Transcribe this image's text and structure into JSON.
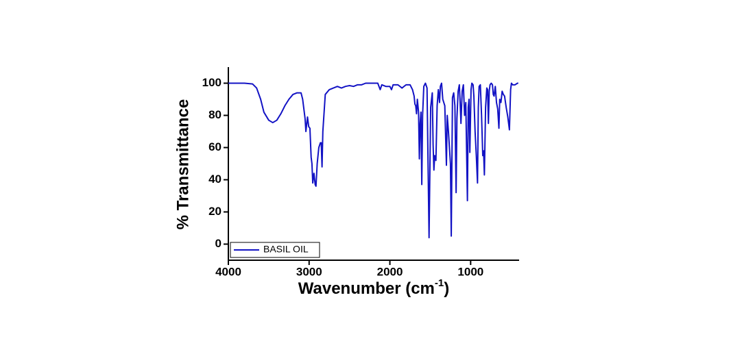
{
  "chart_data": {
    "type": "line",
    "xlabel": [
      "Wavenumber (cm",
      "-1",
      ")"
    ],
    "ylabel": "% Transmittance",
    "xlim": [
      4000,
      400
    ],
    "ylim": [
      -10,
      110
    ],
    "xticks": [
      4000,
      3000,
      2000,
      1000
    ],
    "yticks": [
      0,
      20,
      40,
      60,
      80,
      100
    ],
    "legend": "bottom-left",
    "x": [
      4000,
      3800,
      3700,
      3650,
      3600,
      3560,
      3500,
      3450,
      3400,
      3350,
      3300,
      3250,
      3200,
      3150,
      3100,
      3080,
      3050,
      3040,
      3020,
      3005,
      2990,
      2975,
      2965,
      2955,
      2940,
      2925,
      2915,
      2900,
      2880,
      2860,
      2850,
      2840,
      2830,
      2800,
      2750,
      2700,
      2650,
      2600,
      2550,
      2500,
      2450,
      2400,
      2350,
      2300,
      2200,
      2150,
      2120,
      2100,
      2050,
      2000,
      1980,
      1960,
      1900,
      1850,
      1800,
      1750,
      1720,
      1700,
      1690,
      1680,
      1670,
      1660,
      1645,
      1635,
      1625,
      1615,
      1605,
      1595,
      1580,
      1560,
      1540,
      1515,
      1495,
      1475,
      1465,
      1455,
      1445,
      1430,
      1415,
      1400,
      1385,
      1375,
      1360,
      1345,
      1320,
      1300,
      1290,
      1275,
      1250,
      1240,
      1225,
      1210,
      1195,
      1180,
      1170,
      1155,
      1140,
      1130,
      1120,
      1105,
      1090,
      1075,
      1060,
      1040,
      1030,
      1020,
      1010,
      995,
      985,
      970,
      960,
      945,
      930,
      915,
      905,
      895,
      880,
      865,
      850,
      840,
      830,
      815,
      800,
      790,
      780,
      770,
      760,
      745,
      730,
      720,
      710,
      695,
      680,
      665,
      650,
      640,
      625,
      610,
      595,
      580,
      560,
      540,
      520,
      505,
      495,
      480,
      450,
      420,
      410
    ],
    "series": [
      {
        "name": "BASIL OIL",
        "color": "#1212c4",
        "values": [
          100,
          100,
          99.5,
          97,
          90,
          82,
          77,
          75.5,
          77,
          81,
          86,
          90,
          93,
          94,
          94,
          90,
          78,
          70,
          79,
          73,
          72,
          54,
          50,
          38,
          44,
          37,
          36,
          50,
          60,
          63,
          63,
          48,
          70,
          93,
          96,
          97,
          98,
          97,
          98,
          98.5,
          98,
          99,
          99,
          100,
          100,
          100,
          96,
          99,
          98,
          98,
          96,
          99,
          99,
          97,
          99,
          99,
          96,
          92,
          87,
          86,
          81,
          90,
          82,
          53,
          75,
          82,
          37,
          80,
          98,
          100,
          97,
          4,
          85,
          94,
          62,
          46,
          55,
          52,
          86,
          96,
          88,
          98,
          100,
          90,
          86,
          49,
          80,
          70,
          50,
          5,
          91,
          94,
          86,
          32,
          78,
          95,
          99,
          88,
          75,
          95,
          99,
          80,
          88,
          27,
          85,
          90,
          57,
          96,
          100,
          99,
          92,
          70,
          55,
          38,
          85,
          98,
          99,
          80,
          55,
          58,
          43,
          85,
          97,
          96,
          75,
          95,
          99,
          100,
          99,
          93,
          92,
          98,
          88,
          84,
          72,
          90,
          88,
          95,
          93,
          92,
          85,
          79,
          71,
          96,
          100,
          99,
          99,
          100,
          100
        ]
      }
    ]
  }
}
